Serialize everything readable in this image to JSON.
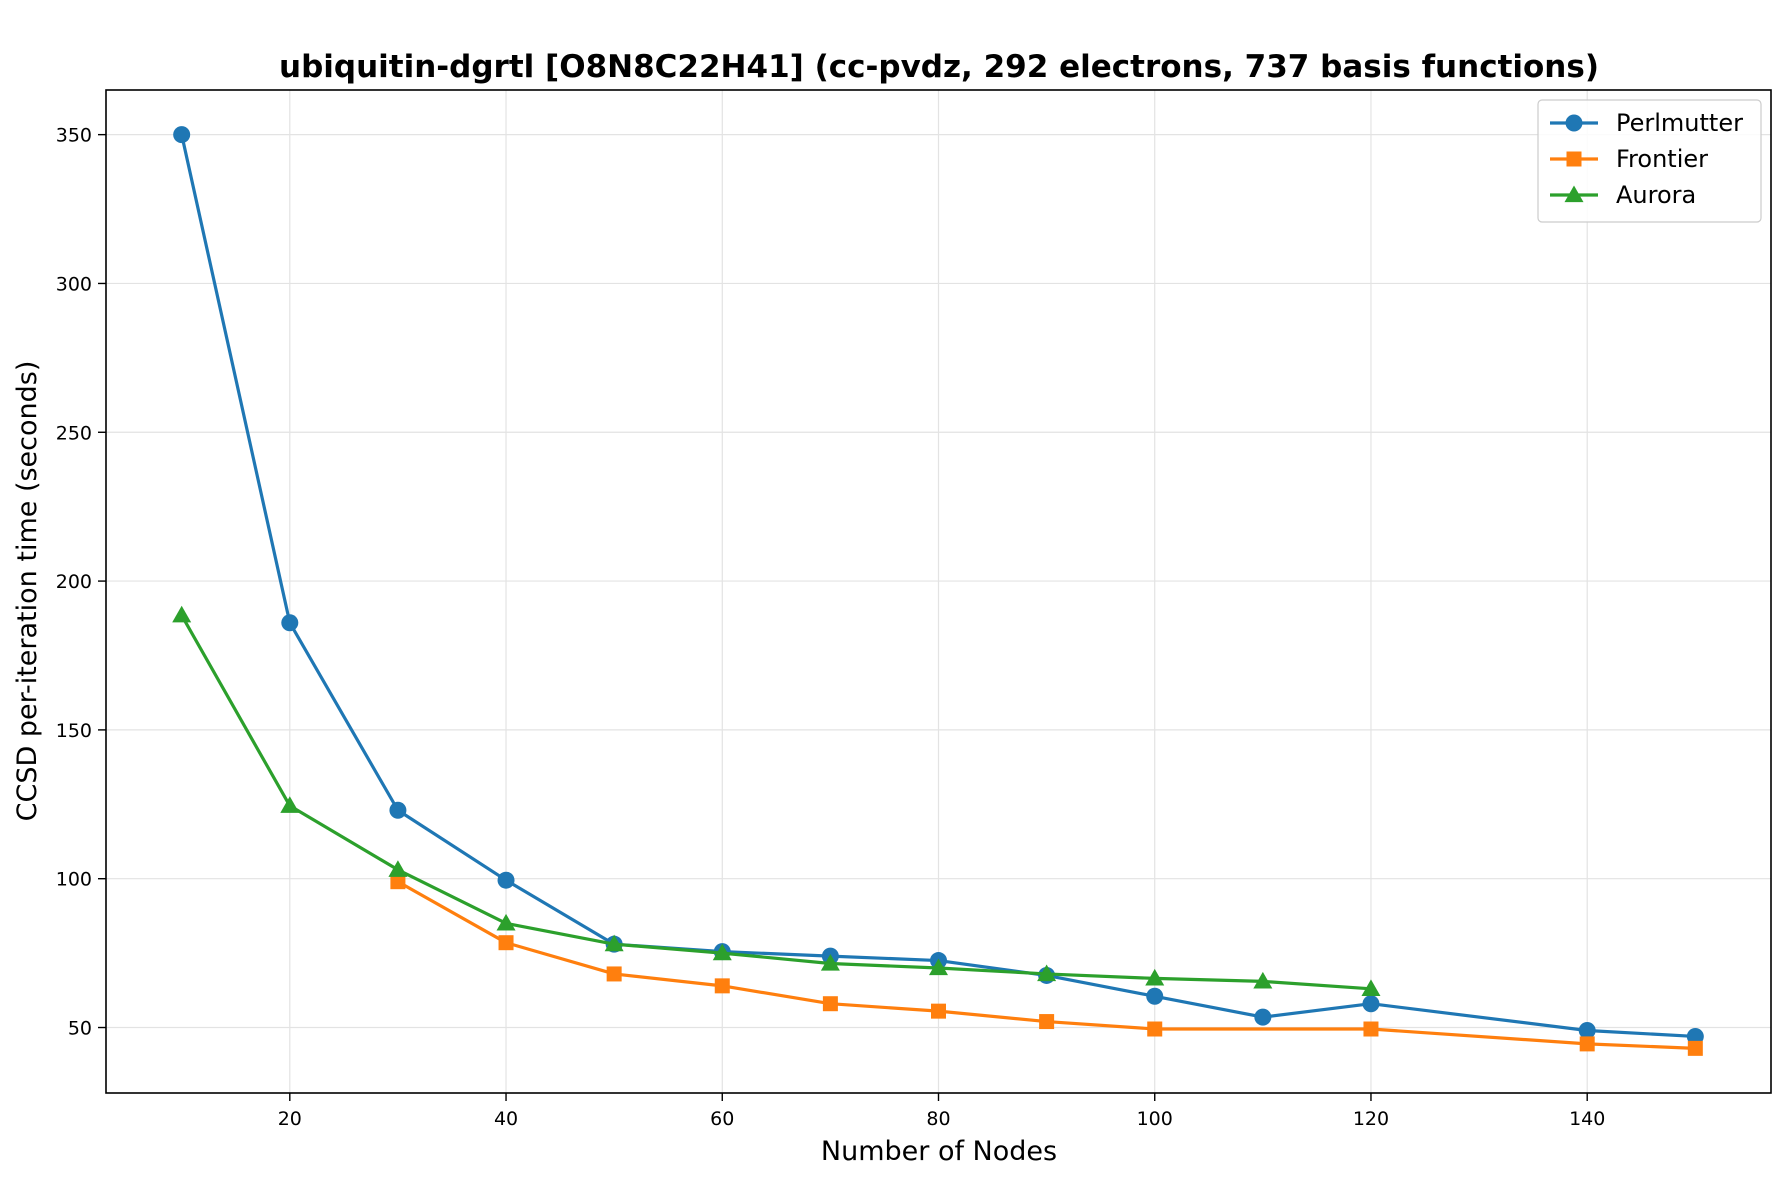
{
  "chart_data": {
    "type": "line",
    "title": "ubiquitin-dgrtl [O8N8C22H41] (cc-pvdz, 292 electrons, 737 basis functions)",
    "xlabel": "Number of Nodes",
    "ylabel": "CCSD per-iteration time (seconds)",
    "xlim": [
      3,
      157
    ],
    "ylim": [
      28,
      365
    ],
    "xticks": [
      20,
      40,
      60,
      80,
      100,
      120,
      140
    ],
    "yticks": [
      50,
      100,
      150,
      200,
      250,
      300,
      350
    ],
    "grid": true,
    "legend_position": "top-right",
    "series": [
      {
        "name": "Perlmutter",
        "color": "#1f77b4",
        "marker": "circle",
        "x": [
          10,
          20,
          30,
          40,
          50,
          60,
          70,
          80,
          90,
          100,
          110,
          120,
          140,
          150
        ],
        "y": [
          350,
          186,
          123,
          99.5,
          78,
          75.5,
          74,
          72.5,
          67.5,
          60.5,
          53.5,
          58,
          49,
          47
        ]
      },
      {
        "name": "Frontier",
        "color": "#ff7f0e",
        "marker": "square",
        "x": [
          30,
          40,
          50,
          60,
          70,
          80,
          90,
          100,
          120,
          140,
          150
        ],
        "y": [
          99,
          78.5,
          68,
          64,
          58,
          55.5,
          52,
          49.5,
          49.5,
          44.5,
          43
        ]
      },
      {
        "name": "Aurora",
        "color": "#2ca02c",
        "marker": "triangle",
        "x": [
          10,
          20,
          30,
          40,
          50,
          60,
          70,
          80,
          90,
          100,
          110,
          120
        ],
        "y": [
          188.5,
          124.5,
          103,
          85,
          78,
          75,
          71.5,
          70,
          68,
          66.5,
          65.5,
          63
        ]
      }
    ]
  }
}
